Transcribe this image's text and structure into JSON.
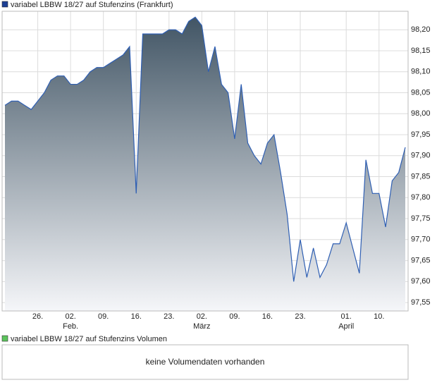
{
  "chart_data": {
    "type": "area",
    "legend": "variabel LBBW 18/27 auf Stufenzins (Frankfurt)",
    "legend_color": "#1c3f94",
    "line_color": "#2f5fb3",
    "fill_top": "#3e5262",
    "fill_bottom": "#f5f6f9",
    "grid": true,
    "categories": [
      null,
      null,
      null,
      null,
      null,
      "26.",
      null,
      null,
      null,
      null,
      "02.",
      null,
      null,
      null,
      null,
      "09.",
      null,
      null,
      null,
      null,
      "16.",
      null,
      null,
      null,
      null,
      "23.",
      null,
      null,
      null,
      null,
      "02.",
      null,
      null,
      null,
      null,
      "09.",
      null,
      null,
      null,
      null,
      "16.",
      null,
      null,
      null,
      null,
      "23.",
      null,
      null,
      null,
      null,
      null,
      null,
      "01.",
      null,
      null,
      null,
      null,
      "10.",
      null,
      null,
      null,
      null
    ],
    "months": [
      null,
      null,
      null,
      null,
      null,
      null,
      null,
      null,
      null,
      null,
      "Feb.",
      null,
      null,
      null,
      null,
      null,
      null,
      null,
      null,
      null,
      null,
      null,
      null,
      null,
      null,
      null,
      null,
      null,
      null,
      null,
      "März",
      null,
      null,
      null,
      null,
      null,
      null,
      null,
      null,
      null,
      null,
      null,
      null,
      null,
      null,
      null,
      null,
      null,
      null,
      null,
      null,
      null,
      "April",
      null,
      null,
      null,
      null,
      null,
      null,
      null,
      null,
      null
    ],
    "values": [
      98.02,
      98.03,
      98.03,
      98.02,
      98.01,
      98.03,
      98.05,
      98.08,
      98.09,
      98.09,
      98.07,
      98.07,
      98.08,
      98.1,
      98.11,
      98.11,
      98.12,
      98.13,
      98.14,
      98.16,
      97.81,
      98.19,
      98.19,
      98.19,
      98.19,
      98.2,
      98.2,
      98.19,
      98.22,
      98.23,
      98.21,
      98.1,
      98.16,
      98.07,
      98.05,
      97.94,
      98.07,
      97.93,
      97.9,
      97.88,
      97.93,
      97.95,
      97.86,
      97.76,
      97.6,
      97.7,
      97.61,
      97.68,
      97.61,
      97.64,
      97.69,
      97.69,
      97.74,
      97.68,
      97.62,
      97.89,
      97.81,
      97.81,
      97.73,
      97.84,
      97.86,
      97.92
    ],
    "ylim": [
      97.53,
      98.244
    ],
    "yticks": [
      {
        "value": 97.55,
        "label": "97,55"
      },
      {
        "value": 97.6,
        "label": "97,60"
      },
      {
        "value": 97.65,
        "label": "97,65"
      },
      {
        "value": 97.7,
        "label": "97,70"
      },
      {
        "value": 97.75,
        "label": "97,75"
      },
      {
        "value": 97.8,
        "label": "97,80"
      },
      {
        "value": 97.85,
        "label": "97,85"
      },
      {
        "value": 97.9,
        "label": "97,90"
      },
      {
        "value": 97.95,
        "label": "97,95"
      },
      {
        "value": 98.0,
        "label": "98,00"
      },
      {
        "value": 98.05,
        "label": "98,05"
      },
      {
        "value": 98.1,
        "label": "98,10"
      },
      {
        "value": 98.15,
        "label": "98,15"
      },
      {
        "value": 98.2,
        "label": "98,20"
      }
    ]
  },
  "volume_panel": {
    "legend": "variabel LBBW 18/27 auf Stufenzins Volumen",
    "legend_color": "#5cc45c",
    "message": "keine Volumendaten vorhanden"
  }
}
